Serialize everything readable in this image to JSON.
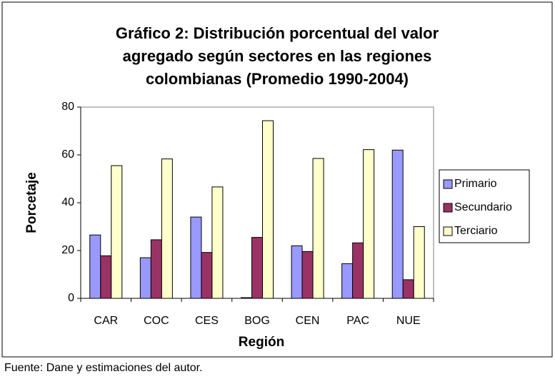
{
  "chart_data": {
    "type": "bar",
    "title": [
      "Gráfico 2: Distribución porcentual del valor",
      "agregado según sectores en las regiones",
      "colombianas (Promedio 1990-2004)"
    ],
    "x_label": "Región",
    "y_label": "Porcetaje",
    "categories": [
      "CAR",
      "COC",
      "CES",
      "BOG",
      "CEN",
      "PAC",
      "NUE"
    ],
    "series": [
      {
        "name": "Primario",
        "color": "#9999ff",
        "values": [
          26.5,
          17,
          34,
          0.3,
          22,
          14.5,
          62
        ]
      },
      {
        "name": "Secundario",
        "color": "#993366",
        "values": [
          17.8,
          24.5,
          19.2,
          25.5,
          19.6,
          23.2,
          7.8
        ]
      },
      {
        "name": "Terciario",
        "color": "#ffffcc",
        "values": [
          55.5,
          58.3,
          46.6,
          74.3,
          58.5,
          62.2,
          30
        ]
      }
    ],
    "ylim": [
      0,
      80
    ],
    "yticks": [
      0,
      20,
      40,
      60,
      80
    ],
    "grid": false,
    "legend": "right",
    "source": "Fuente: Dane y estimaciones del autor."
  }
}
